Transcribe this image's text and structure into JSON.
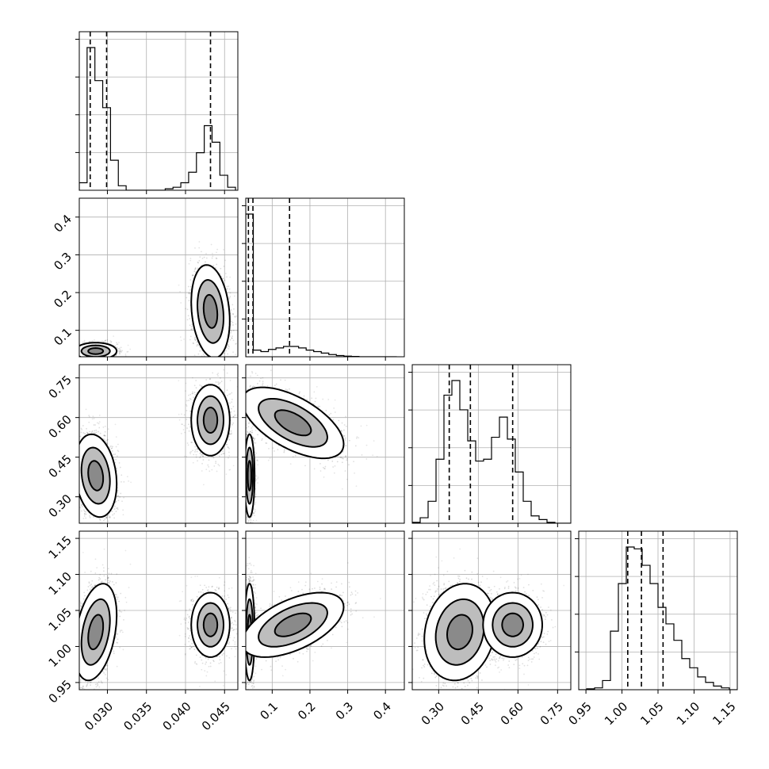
{
  "chart_data": {
    "type": "scatter",
    "subtype": "corner-plot",
    "n_params": 4,
    "param_ranges": [
      [
        0.0264,
        0.0467
      ],
      [
        0.03,
        0.45
      ],
      [
        0.2,
        0.8
      ],
      [
        0.94,
        1.16
      ]
    ],
    "params": [
      {
        "ticks": [
          0.03,
          0.035,
          0.04,
          0.045
        ],
        "ticklabels": [
          "0.030",
          "0.035",
          "0.040",
          "0.045"
        ],
        "quantiles": [
          0.0278,
          0.0299,
          0.0432
        ],
        "hist_edges": [
          0.0264,
          0.0274,
          0.0284,
          0.0294,
          0.0304,
          0.0314,
          0.0324,
          0.0334,
          0.0344,
          0.0354,
          0.0364,
          0.0374,
          0.0384,
          0.0394,
          0.0404,
          0.0414,
          0.0424,
          0.0434,
          0.0444,
          0.0454,
          0.0464
        ],
        "hist_counts": [
          0.05,
          0.95,
          0.73,
          0.55,
          0.2,
          0.03,
          0,
          0,
          0,
          0,
          0,
          0.01,
          0.02,
          0.05,
          0.12,
          0.25,
          0.43,
          0.32,
          0.1,
          0.02
        ]
      },
      {
        "ticks": [
          0.1,
          0.2,
          0.3,
          0.4
        ],
        "ticklabels": [
          "0.1",
          "0.2",
          "0.3",
          "0.4"
        ],
        "quantiles": [
          0.037,
          0.049,
          0.146
        ],
        "hist_edges": [
          0.03,
          0.05,
          0.07,
          0.09,
          0.11,
          0.13,
          0.15,
          0.17,
          0.19,
          0.21,
          0.23,
          0.25,
          0.27,
          0.29,
          0.31,
          0.33,
          0.35,
          0.37,
          0.39,
          0.41,
          0.43
        ],
        "hist_counts": [
          0.97,
          0.045,
          0.035,
          0.05,
          0.06,
          0.07,
          0.07,
          0.06,
          0.045,
          0.035,
          0.025,
          0.015,
          0.008,
          0.004,
          0.002,
          0,
          0,
          0,
          0,
          0
        ]
      },
      {
        "ticks": [
          0.3,
          0.45,
          0.6,
          0.75
        ],
        "ticklabels": [
          "0.30",
          "0.45",
          "0.60",
          "0.75"
        ],
        "quantiles": [
          0.34,
          0.42,
          0.58
        ],
        "hist_edges": [
          0.2,
          0.23,
          0.26,
          0.29,
          0.32,
          0.35,
          0.38,
          0.41,
          0.44,
          0.47,
          0.5,
          0.53,
          0.56,
          0.59,
          0.62,
          0.65,
          0.68,
          0.71,
          0.74,
          0.77,
          0.8
        ],
        "hist_counts": [
          0.005,
          0.03,
          0.12,
          0.35,
          0.7,
          0.78,
          0.62,
          0.45,
          0.34,
          0.35,
          0.47,
          0.58,
          0.46,
          0.28,
          0.12,
          0.04,
          0.02,
          0.005,
          0,
          0
        ]
      },
      {
        "ticks": [
          0.95,
          1.0,
          1.05,
          1.1,
          1.15
        ],
        "ticklabels": [
          "0.95",
          "1.00",
          "1.05",
          "1.10",
          "1.15"
        ],
        "quantiles": [
          1.008,
          1.027,
          1.057
        ],
        "hist_edges": [
          0.94,
          0.951,
          0.962,
          0.973,
          0.984,
          0.995,
          1.006,
          1.017,
          1.028,
          1.039,
          1.05,
          1.061,
          1.072,
          1.083,
          1.094,
          1.105,
          1.116,
          1.127,
          1.138,
          1.149,
          1.16
        ],
        "hist_counts": [
          0,
          0.005,
          0.01,
          0.05,
          0.32,
          0.58,
          0.78,
          0.77,
          0.68,
          0.58,
          0.45,
          0.36,
          0.27,
          0.17,
          0.12,
          0.07,
          0.04,
          0.02,
          0.01,
          0
        ]
      }
    ],
    "hist_yticks": 4,
    "pair_panels": [
      {
        "row": 1,
        "col": 0,
        "modes": [
          {
            "cx": 0.0285,
            "cy": 0.045,
            "sx": 0.0012,
            "sy": 0.01,
            "rho": 0.0,
            "w": 0.5
          },
          {
            "cx": 0.0432,
            "cy": 0.15,
            "sx": 0.0011,
            "sy": 0.055,
            "rho": -0.2,
            "w": 0.5
          }
        ]
      },
      {
        "row": 2,
        "col": 0,
        "modes": [
          {
            "cx": 0.0285,
            "cy": 0.38,
            "sx": 0.0012,
            "sy": 0.07,
            "rho": -0.2,
            "w": 0.55
          },
          {
            "cx": 0.0432,
            "cy": 0.59,
            "sx": 0.0011,
            "sy": 0.06,
            "rho": 0.0,
            "w": 0.45
          }
        ]
      },
      {
        "row": 2,
        "col": 1,
        "modes": [
          {
            "cx": 0.04,
            "cy": 0.38,
            "sx": 0.006,
            "sy": 0.07,
            "rho": 0.0,
            "w": 0.5
          },
          {
            "cx": 0.155,
            "cy": 0.58,
            "sx": 0.06,
            "sy": 0.06,
            "rho": -0.6,
            "w": 0.5
          }
        ]
      },
      {
        "row": 3,
        "col": 0,
        "modes": [
          {
            "cx": 0.0285,
            "cy": 1.02,
            "sx": 0.0012,
            "sy": 0.03,
            "rho": 0.35,
            "w": 0.55
          },
          {
            "cx": 0.0432,
            "cy": 1.03,
            "sx": 0.0011,
            "sy": 0.02,
            "rho": 0.0,
            "w": 0.45
          }
        ]
      },
      {
        "row": 3,
        "col": 1,
        "modes": [
          {
            "cx": 0.04,
            "cy": 1.02,
            "sx": 0.006,
            "sy": 0.03,
            "rho": 0.0,
            "w": 0.5
          },
          {
            "cx": 0.155,
            "cy": 1.03,
            "sx": 0.06,
            "sy": 0.02,
            "rho": 0.55,
            "w": 0.5
          }
        ]
      },
      {
        "row": 3,
        "col": 2,
        "modes": [
          {
            "cx": 0.38,
            "cy": 1.02,
            "sx": 0.06,
            "sy": 0.03,
            "rho": 0.15,
            "w": 0.55
          },
          {
            "cx": 0.58,
            "cy": 1.03,
            "sx": 0.05,
            "sy": 0.02,
            "rho": 0.0,
            "w": 0.45
          }
        ]
      }
    ],
    "contour_levels": [
      1.0,
      1.6,
      2.3
    ],
    "grid": true
  }
}
